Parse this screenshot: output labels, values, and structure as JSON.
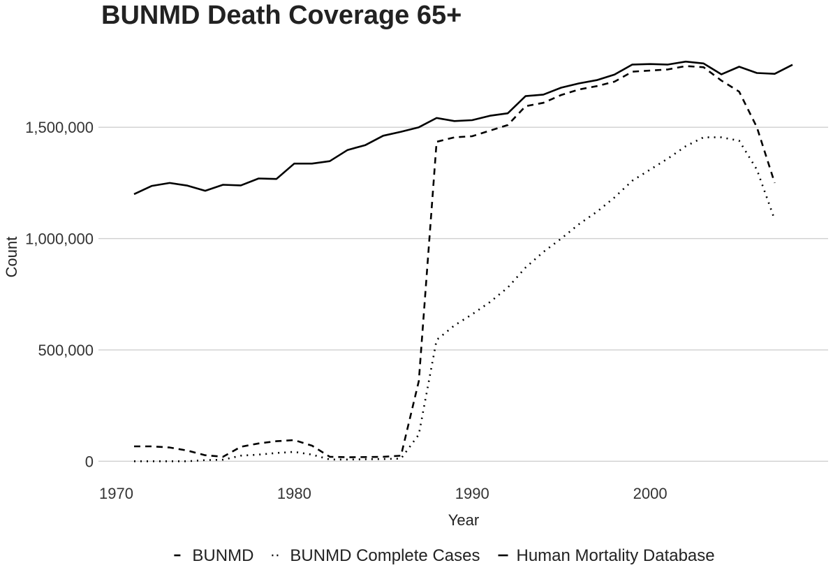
{
  "chart_data": {
    "type": "line",
    "title": "BUNMD Death Coverage 65+",
    "xlabel": "Year",
    "ylabel": "Count",
    "xlim": [
      1969,
      2010
    ],
    "ylim": [
      -90000,
      1940000
    ],
    "x_ticks": [
      1970,
      1980,
      1990,
      2000
    ],
    "x_tick_labels": [
      "1970",
      "1980",
      "1990",
      "2000"
    ],
    "y_ticks": [
      0,
      500000,
      1000000,
      1500000
    ],
    "y_tick_labels": [
      "0",
      "500,000",
      "1,000,000",
      "1,500,000"
    ],
    "grid": "horizontal-major",
    "legend_position": "bottom",
    "x": [
      1971,
      1972,
      1973,
      1974,
      1975,
      1976,
      1977,
      1978,
      1979,
      1980,
      1981,
      1982,
      1983,
      1984,
      1985,
      1986,
      1987,
      1988,
      1989,
      1990,
      1991,
      1992,
      1993,
      1994,
      1995,
      1996,
      1997,
      1998,
      1999,
      2000,
      2001,
      2002,
      2003,
      2004,
      2005,
      2006,
      2007,
      2008
    ],
    "series": [
      {
        "name": "BUNMD",
        "dash": "dashed",
        "x": [
          1971,
          1972,
          1973,
          1974,
          1975,
          1976,
          1977,
          1978,
          1979,
          1980,
          1981,
          1982,
          1983,
          1984,
          1985,
          1986,
          1987,
          1988,
          1989,
          1990,
          1991,
          1992,
          1993,
          1994,
          1995,
          1996,
          1997,
          1998,
          1999,
          2000,
          2001,
          2002,
          2003,
          2004,
          2005,
          2006,
          2007
        ],
        "values": [
          67000,
          67000,
          62000,
          48000,
          27000,
          20000,
          65000,
          80000,
          90000,
          95000,
          70000,
          20000,
          18000,
          19000,
          20000,
          25000,
          360000,
          1435000,
          1455000,
          1460000,
          1485000,
          1510000,
          1595000,
          1610000,
          1645000,
          1670000,
          1685000,
          1705000,
          1750000,
          1755000,
          1760000,
          1775000,
          1770000,
          1710000,
          1660000,
          1500000,
          1250000
        ]
      },
      {
        "name": "BUNMD Complete Cases",
        "dash": "dotted",
        "x": [
          1971,
          1972,
          1973,
          1974,
          1975,
          1976,
          1977,
          1978,
          1979,
          1980,
          1981,
          1982,
          1983,
          1984,
          1985,
          1986,
          1987,
          1988,
          1989,
          1990,
          1991,
          1992,
          1993,
          1994,
          1995,
          1996,
          1997,
          1998,
          1999,
          2000,
          2001,
          2002,
          2003,
          2004,
          2005,
          2006,
          2007
        ],
        "values": [
          0,
          0,
          0,
          0,
          5000,
          7000,
          25000,
          30000,
          37000,
          42000,
          30000,
          8000,
          8000,
          9000,
          10000,
          12000,
          120000,
          545000,
          610000,
          660000,
          715000,
          780000,
          870000,
          940000,
          1000000,
          1065000,
          1120000,
          1185000,
          1260000,
          1310000,
          1360000,
          1415000,
          1455000,
          1455000,
          1440000,
          1310000,
          1085000
        ]
      },
      {
        "name": "Human Mortality Database",
        "dash": "solid",
        "x": [
          1971,
          1972,
          1973,
          1974,
          1975,
          1976,
          1977,
          1978,
          1979,
          1980,
          1981,
          1982,
          1983,
          1984,
          1985,
          1986,
          1987,
          1988,
          1989,
          1990,
          1991,
          1992,
          1993,
          1994,
          1995,
          1996,
          1997,
          1998,
          1999,
          2000,
          2001,
          2002,
          2003,
          2004,
          2005,
          2006,
          2007,
          2008
        ],
        "values": [
          1200000,
          1237000,
          1250000,
          1238000,
          1215000,
          1242000,
          1239000,
          1270000,
          1268000,
          1337000,
          1337000,
          1348000,
          1398000,
          1420000,
          1462000,
          1480000,
          1500000,
          1542000,
          1528000,
          1532000,
          1552000,
          1563000,
          1640000,
          1647000,
          1678000,
          1697000,
          1712000,
          1737000,
          1782000,
          1784000,
          1782000,
          1795000,
          1787000,
          1738000,
          1772000,
          1744000,
          1740000,
          1781000
        ]
      }
    ]
  }
}
